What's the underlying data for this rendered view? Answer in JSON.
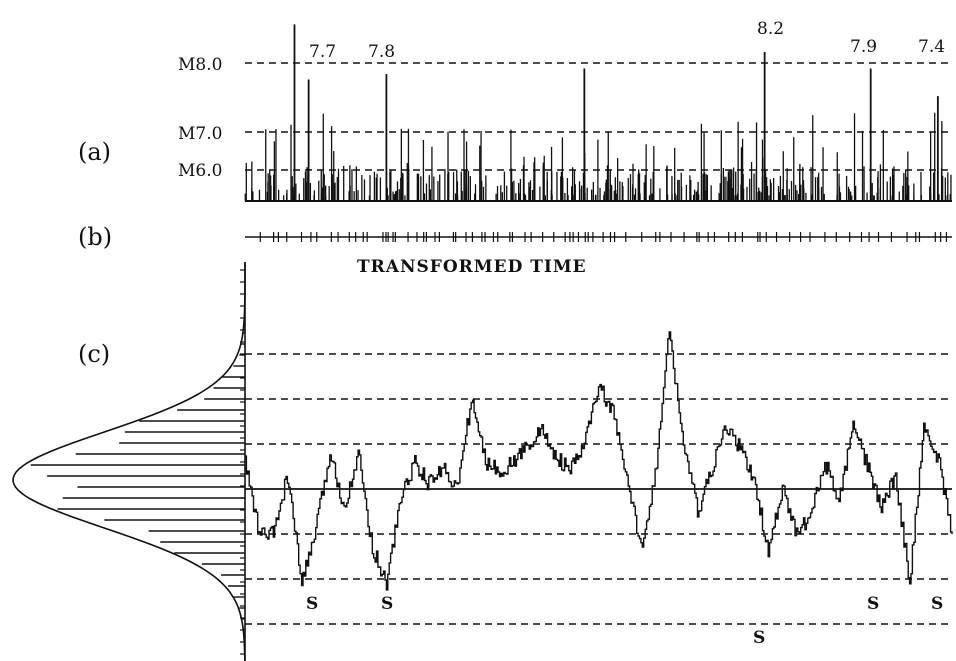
{
  "panel_labels": {
    "a": "(a)",
    "b": "(b)",
    "c": "(c)"
  },
  "magnitude_levels": [
    {
      "label": "M8.0",
      "value": 8.0
    },
    {
      "label": "M7.0",
      "value": 7.0
    },
    {
      "label": "M6.0",
      "value": 6.0
    }
  ],
  "large_events": [
    {
      "label": "7.7",
      "t": 0.09,
      "mag": 7.7
    },
    {
      "label": "7.8",
      "t": 0.2,
      "mag": 7.8
    },
    {
      "label": "8.2",
      "t": 0.735,
      "mag": 8.2
    },
    {
      "label": "7.9",
      "t": 0.885,
      "mag": 7.9
    },
    {
      "label": "7.4",
      "t": 0.98,
      "mag": 7.4
    }
  ],
  "axis_caption": "TRANSFORMED TIME",
  "s_marker_label": "S",
  "line_color": "#111111",
  "chart_data": [
    {
      "type": "bar",
      "panel": "(a)",
      "description_source": "event magnitudes versus time",
      "ylim": [
        5.5,
        8.8
      ],
      "reference_levels": [
        6.0,
        7.0,
        8.0
      ],
      "events": [
        {
          "t": 0.07,
          "mag": 8.7
        },
        {
          "t": 0.09,
          "mag": 7.7
        },
        {
          "t": 0.2,
          "mag": 7.8
        },
        {
          "t": 0.48,
          "mag": 7.9
        },
        {
          "t": 0.735,
          "mag": 8.2
        },
        {
          "t": 0.885,
          "mag": 7.9
        },
        {
          "t": 0.98,
          "mag": 7.4
        }
      ]
    },
    {
      "type": "line",
      "panel": "(c)",
      "xlabel": "TRANSFORMED TIME",
      "ylim": [
        -3.0,
        4.0
      ],
      "reference_levels": [
        -3,
        -2,
        -1,
        0,
        1,
        2,
        3
      ],
      "x": [
        0.0,
        0.02,
        0.04,
        0.06,
        0.08,
        0.1,
        0.12,
        0.14,
        0.16,
        0.18,
        0.2,
        0.22,
        0.24,
        0.26,
        0.28,
        0.3,
        0.32,
        0.34,
        0.36,
        0.38,
        0.4,
        0.42,
        0.44,
        0.46,
        0.48,
        0.5,
        0.52,
        0.54,
        0.56,
        0.58,
        0.6,
        0.62,
        0.64,
        0.66,
        0.68,
        0.7,
        0.72,
        0.74,
        0.76,
        0.78,
        0.8,
        0.82,
        0.84,
        0.86,
        0.88,
        0.9,
        0.92,
        0.94,
        0.96,
        0.98,
        1.0
      ],
      "y": [
        0.6,
        -1.0,
        -1.0,
        0.3,
        -2.1,
        -0.9,
        0.8,
        -0.4,
        0.8,
        -1.3,
        -2.1,
        -0.2,
        0.6,
        0.1,
        0.5,
        0.0,
        2.0,
        0.6,
        0.4,
        0.6,
        1.0,
        1.3,
        0.7,
        0.4,
        1.0,
        2.3,
        1.7,
        0.2,
        -1.3,
        0.3,
        3.5,
        1.0,
        -0.5,
        0.4,
        1.4,
        0.9,
        0.2,
        -1.4,
        0.0,
        -1.0,
        -0.6,
        0.6,
        -0.3,
        1.4,
        0.5,
        -0.4,
        0.3,
        -2.1,
        1.4,
        0.7,
        -1.0
      ],
      "s_marks": [
        0.08,
        0.19,
        0.735,
        0.885,
        0.98
      ],
      "marginal_distribution": "normal"
    }
  ]
}
